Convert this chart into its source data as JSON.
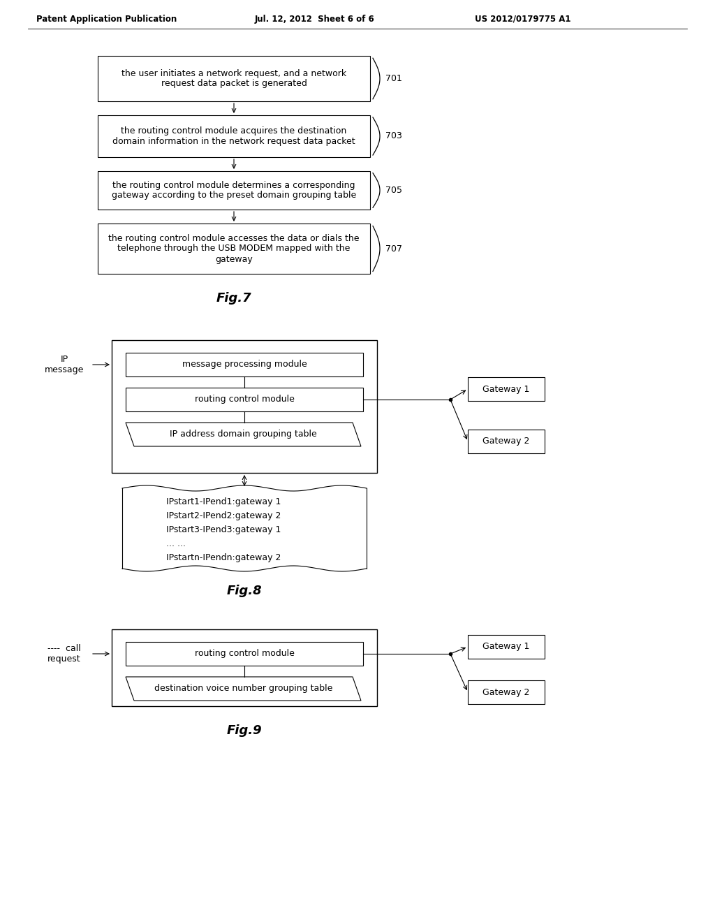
{
  "header_left": "Patent Application Publication",
  "header_mid": "Jul. 12, 2012  Sheet 6 of 6",
  "header_right": "US 2012/0179775 A1",
  "fig7_caption": "Fig.7",
  "fig8_caption": "Fig.8",
  "fig9_caption": "Fig.9",
  "fig7_box1": "the user initiates a network request, and a network\nrequest data packet is generated",
  "fig7_box2": "the routing control module acquires the destination\ndomain information in the network request data packet",
  "fig7_box3": "the routing control module determines a corresponding\ngateway according to the preset domain grouping table",
  "fig7_box4": "the routing control module accesses the data or dials the\ntelephone through the USB MODEM mapped with the\ngateway",
  "fig7_labels": [
    "701",
    "703",
    "705",
    "707"
  ],
  "fig8_msg_proc": "message processing module",
  "fig8_routing": "routing control module",
  "fig8_ip_table": "IP address domain grouping table",
  "fig8_ip_label": "IP\nmessage",
  "fig8_gw1": "Gateway 1",
  "fig8_gw2": "Gateway 2",
  "fig8_table_lines": [
    "IPstart1-IPend1:gateway 1",
    "IPstart2-IPend2:gateway 2",
    "IPstart3-IPend3:gateway 1",
    "... ...",
    "IPstartn-IPendn:gateway 2"
  ],
  "fig9_routing": "routing control module",
  "fig9_voice_table": "destination voice number grouping table",
  "fig9_call_label": "----  call\nrequest",
  "fig9_gw1": "Gateway 1",
  "fig9_gw2": "Gateway 2",
  "bg_color": "#ffffff"
}
